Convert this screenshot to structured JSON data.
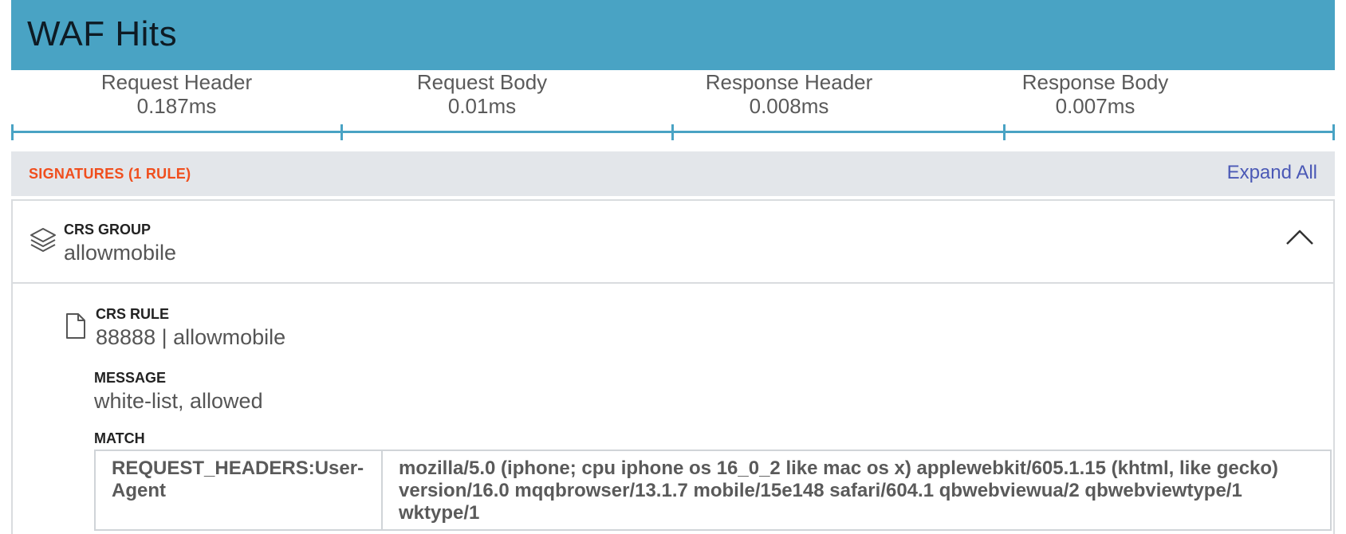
{
  "header": {
    "title": "WAF Hits"
  },
  "phases": [
    {
      "label": "Request Header",
      "time": "0.187ms"
    },
    {
      "label": "Request Body",
      "time": "0.01ms"
    },
    {
      "label": "Response Header",
      "time": "0.008ms"
    },
    {
      "label": "Response Body",
      "time": "0.007ms"
    }
  ],
  "signatures": {
    "title": "SIGNATURES (1 RULE)",
    "expand_all": "Expand All"
  },
  "group": {
    "icon": "layers-icon",
    "label": "CRS GROUP",
    "value": "allowmobile",
    "toggle_icon": "chevron-up-icon"
  },
  "rule": {
    "icon": "file-icon",
    "label": "CRS RULE",
    "value": "88888 | allowmobile"
  },
  "message": {
    "label": "MESSAGE",
    "value": "white-list, allowed"
  },
  "match": {
    "label": "MATCH",
    "rows": [
      {
        "key": "REQUEST_HEADERS:User-Agent",
        "value": "mozilla/5.0 (iphone; cpu iphone os 16_0_2 like mac os x) applewebkit/605.1.15 (khtml, like gecko) version/16.0 mqqbrowser/13.1.7 mobile/15e148 safari/604.1 qbwebviewua/2 qbwebviewtype/1 wktype/1"
      }
    ]
  },
  "colors": {
    "header_bg": "#49a3c4",
    "accent_orange": "#f04e1d",
    "link_blue": "#4b59b6"
  }
}
